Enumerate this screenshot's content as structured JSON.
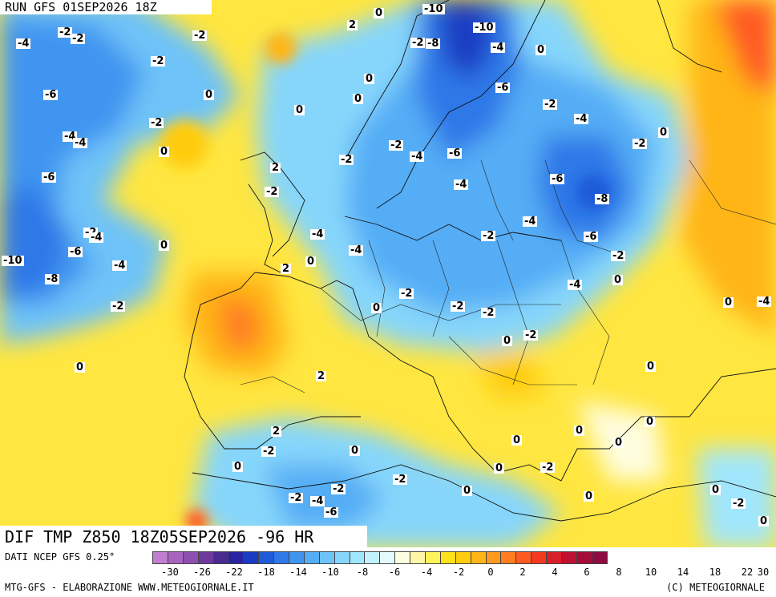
{
  "header": {
    "run_label": "RUN GFS 01SEP2026 18Z",
    "title": "DIF TMP Z850 18Z05SEP2026 -96 HR"
  },
  "footer": {
    "data_source": "DATI NCEP GFS 0.25°",
    "credit_left": "MTG-GFS - ELABORAZIONE WWW.METEOGIORNALE.IT",
    "credit_right": "(C) METEOGIORNALE"
  },
  "colorbar": {
    "colors": [
      "#c07fd0",
      "#a865c0",
      "#8e4fb0",
      "#6f3a9c",
      "#4a2a90",
      "#2a22a0",
      "#1a3cc2",
      "#1f5ad8",
      "#2f78e8",
      "#3f95f0",
      "#55adf5",
      "#6ec3f8",
      "#86d6fb",
      "#a0e6fc",
      "#c2f2fd",
      "#e4fbfd",
      "#fffde0",
      "#fff7a8",
      "#fff25a",
      "#ffe21a",
      "#ffcc10",
      "#ffb515",
      "#ff9a1c",
      "#ff7d20",
      "#ff5a20",
      "#f23a20",
      "#d81e28",
      "#bf1030",
      "#a60c38",
      "#8e0c40"
    ],
    "tick_labels": [
      "-30",
      "-26",
      "-22",
      "-18",
      "-14",
      "-10",
      "-8",
      "-6",
      "-4",
      "-2",
      "0",
      "2",
      "4",
      "6",
      "8",
      "10",
      "14",
      "18",
      "22",
      "30"
    ]
  },
  "isolines": [
    {
      "t": "-2"
    },
    {
      "t": "-2"
    },
    {
      "t": "-4"
    },
    {
      "t": "-2"
    },
    {
      "t": "-2"
    },
    {
      "t": "-6"
    },
    {
      "t": "0"
    },
    {
      "t": "-2"
    },
    {
      "t": "0"
    },
    {
      "t": "-4"
    },
    {
      "t": "-4"
    },
    {
      "t": "0"
    },
    {
      "t": "-6"
    },
    {
      "t": "2"
    },
    {
      "t": "-2"
    },
    {
      "t": "-4"
    },
    {
      "t": "-2"
    },
    {
      "t": "-6"
    },
    {
      "t": "-4"
    },
    {
      "t": "-10"
    },
    {
      "t": "-8"
    },
    {
      "t": "0"
    },
    {
      "t": "-2"
    },
    {
      "t": "2"
    },
    {
      "t": "0"
    },
    {
      "t": "0"
    },
    {
      "t": "0"
    },
    {
      "t": "0"
    },
    {
      "t": "-2"
    },
    {
      "t": "-4"
    },
    {
      "t": "2"
    },
    {
      "t": "0"
    },
    {
      "t": "0"
    },
    {
      "t": "-4"
    },
    {
      "t": "-10"
    },
    {
      "t": "-2"
    },
    {
      "t": "-8"
    },
    {
      "t": "-10"
    },
    {
      "t": "-4"
    },
    {
      "t": "0"
    },
    {
      "t": "-6"
    },
    {
      "t": "-2"
    },
    {
      "t": "-4"
    },
    {
      "t": "0"
    },
    {
      "t": "-2"
    },
    {
      "t": "-2"
    },
    {
      "t": "-4"
    },
    {
      "t": "-6"
    },
    {
      "t": "-4"
    },
    {
      "t": "-6"
    },
    {
      "t": "-8"
    },
    {
      "t": "-4"
    },
    {
      "t": "-2"
    },
    {
      "t": "-6"
    },
    {
      "t": "-2"
    },
    {
      "t": "-4"
    },
    {
      "t": "0"
    },
    {
      "t": "-2"
    },
    {
      "t": "-2"
    },
    {
      "t": "-2"
    },
    {
      "t": "0"
    },
    {
      "t": "-2"
    },
    {
      "t": "0"
    },
    {
      "t": "-4"
    },
    {
      "t": "0"
    },
    {
      "t": "0"
    },
    {
      "t": "2"
    },
    {
      "t": "0"
    },
    {
      "t": "0"
    },
    {
      "t": "0"
    },
    {
      "t": "0"
    },
    {
      "t": "-2"
    },
    {
      "t": "2"
    },
    {
      "t": "-2"
    },
    {
      "t": "0"
    },
    {
      "t": "-2"
    },
    {
      "t": "-2"
    },
    {
      "t": "-4"
    },
    {
      "t": "-6"
    },
    {
      "t": "0"
    },
    {
      "t": "0"
    },
    {
      "t": "-2"
    },
    {
      "t": "0"
    },
    {
      "t": "0"
    },
    {
      "t": "-2"
    },
    {
      "t": "0"
    }
  ]
}
